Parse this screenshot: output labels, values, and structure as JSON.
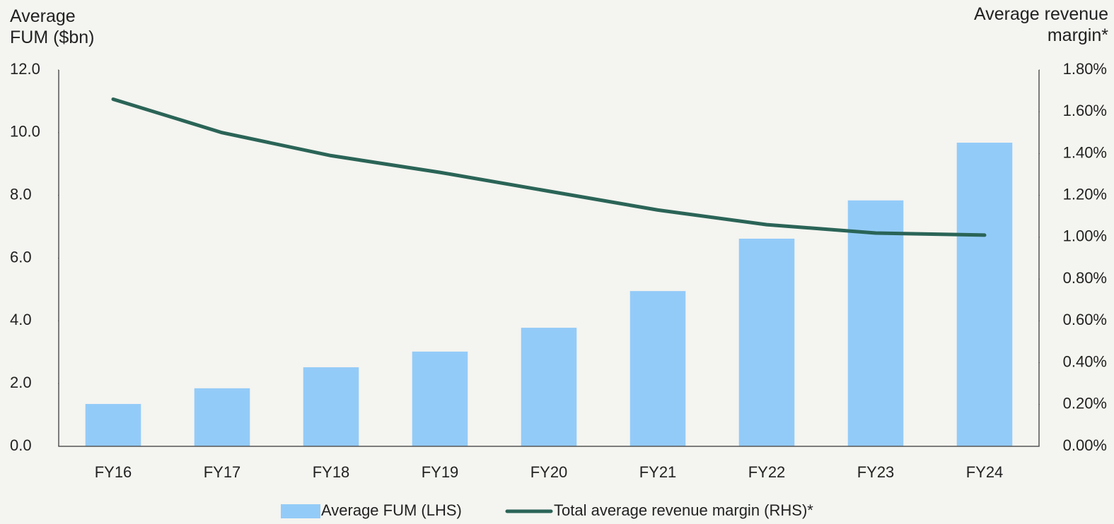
{
  "chart_data": {
    "type": "bar_line",
    "y_label": "Average FUM ($bn)",
    "y2_label": "Average revenue margin*",
    "categories": [
      "FY16",
      "FY17",
      "FY18",
      "FY19",
      "FY20",
      "FY21",
      "FY22",
      "FY23",
      "FY24"
    ],
    "series": [
      {
        "name": "Average FUM (LHS)",
        "type": "bar",
        "color": "#93cbf8",
        "values": [
          1.35,
          1.85,
          2.52,
          3.02,
          3.78,
          4.95,
          6.62,
          7.84,
          9.68
        ]
      },
      {
        "name": "Total average revenue margin (RHS)*",
        "type": "line",
        "axis": "y2",
        "color": "#2a6457",
        "values": [
          1.66,
          1.5,
          1.39,
          1.31,
          1.22,
          1.13,
          1.06,
          1.02,
          1.01
        ]
      }
    ],
    "ylim": [
      0,
      12
    ],
    "yticks": [
      {
        "value": 0,
        "label": "0.0"
      },
      {
        "value": 2,
        "label": "2.0"
      },
      {
        "value": 4,
        "label": "4.0"
      },
      {
        "value": 6,
        "label": "6.0"
      },
      {
        "value": 8,
        "label": "8.0"
      },
      {
        "value": 10,
        "label": "10.0"
      },
      {
        "value": 12,
        "label": "12.0"
      }
    ],
    "y2lim": [
      0,
      1.8
    ],
    "y2ticks": [
      {
        "value": 0,
        "label": "0.00%"
      },
      {
        "value": 0.2,
        "label": "0.20%"
      },
      {
        "value": 0.4,
        "label": "0.40%"
      },
      {
        "value": 0.6,
        "label": "0.60%"
      },
      {
        "value": 0.8,
        "label": "0.80%"
      },
      {
        "value": 1.0,
        "label": "1.00%"
      },
      {
        "value": 1.2,
        "label": "1.20%"
      },
      {
        "value": 1.4,
        "label": "1.40%"
      },
      {
        "value": 1.6,
        "label": "1.60%"
      },
      {
        "value": 1.8,
        "label": "1.80%"
      }
    ],
    "grid": false
  }
}
